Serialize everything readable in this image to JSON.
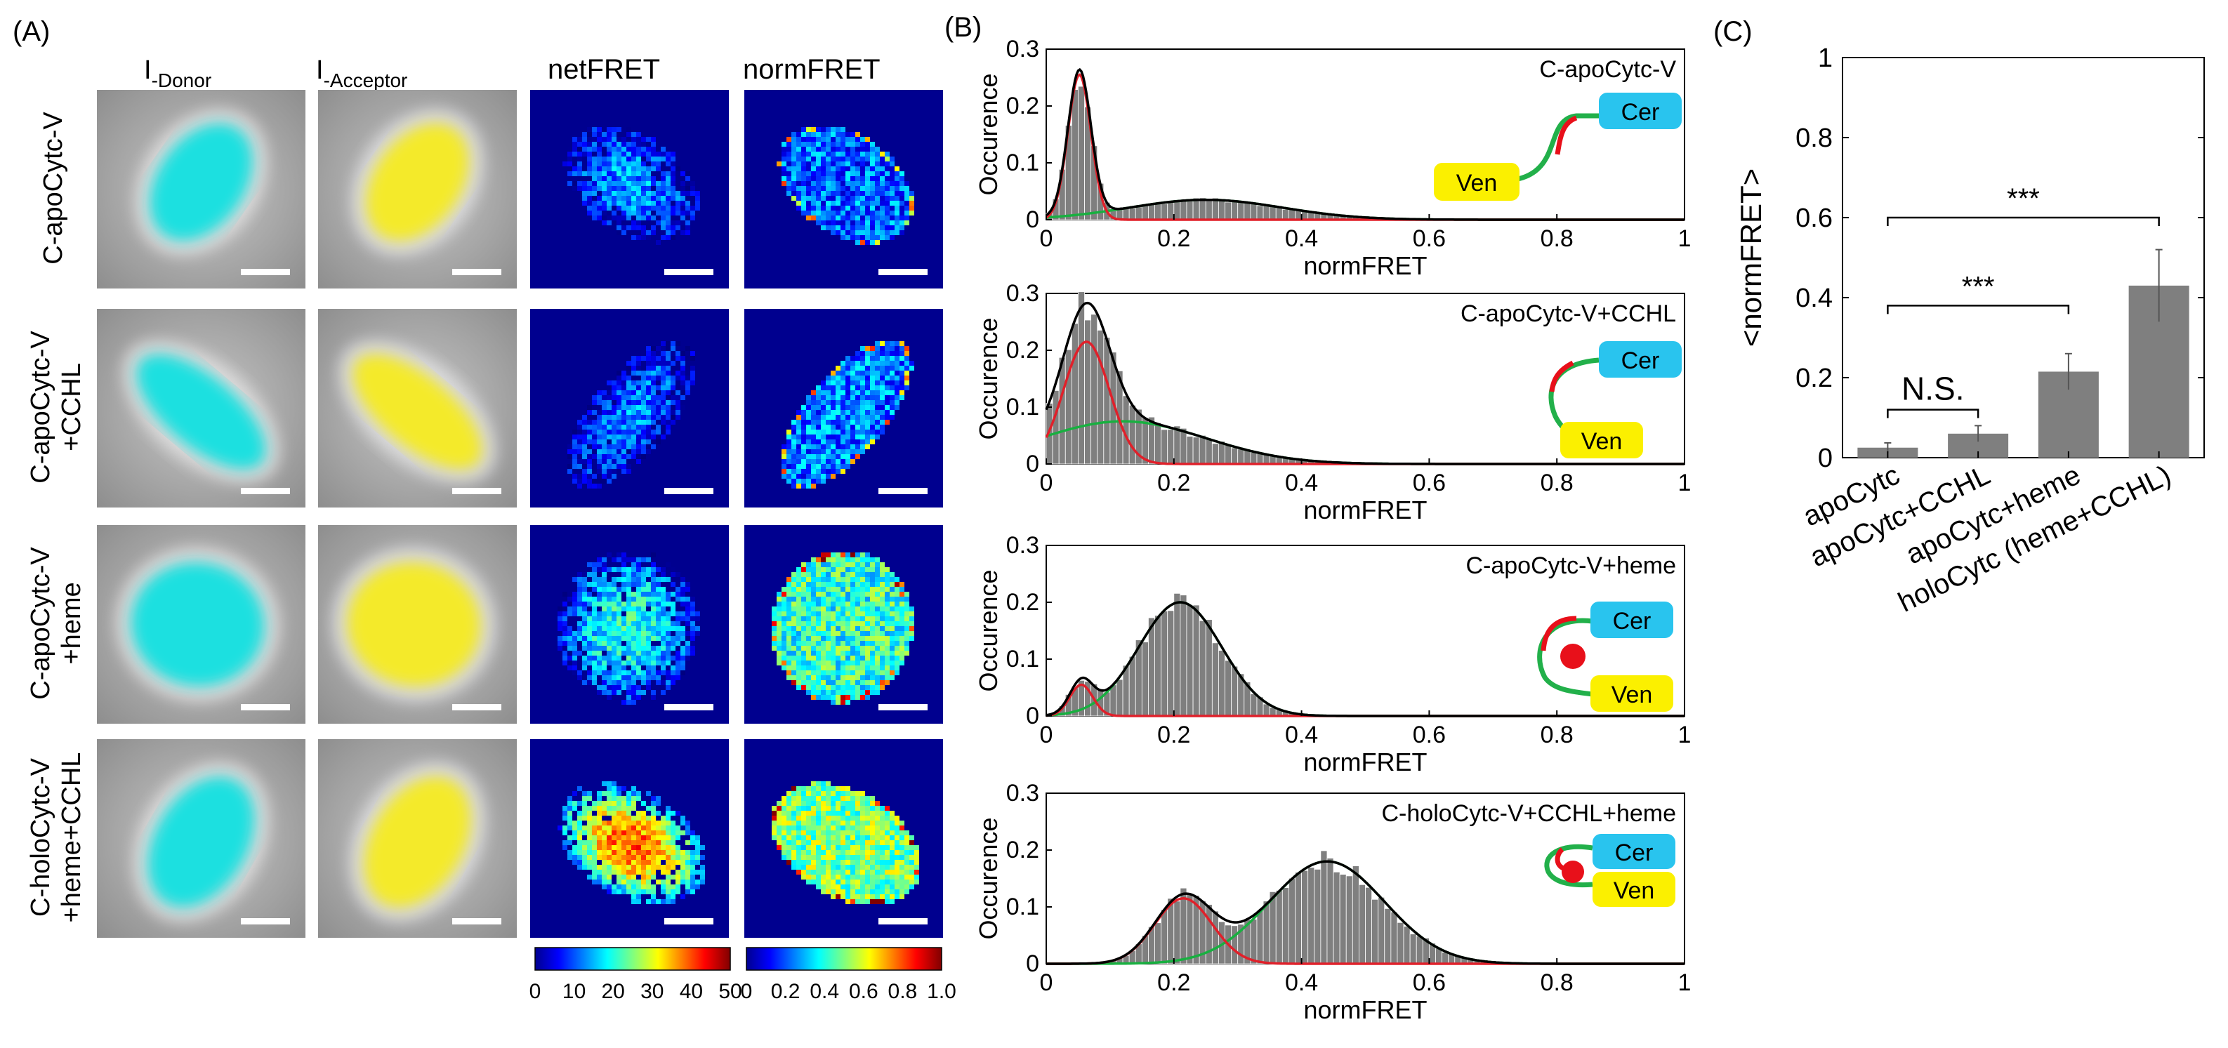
{
  "panels": {
    "a": "(A)",
    "b": "(B)",
    "c": "(C)"
  },
  "imaging": {
    "column_headers": [
      {
        "base": "I",
        "sub": "-Donor"
      },
      {
        "base": "I",
        "sub": "-Acceptor"
      },
      {
        "base": "netFRET",
        "sub": ""
      },
      {
        "base": "normFRET",
        "sub": ""
      }
    ],
    "rows": [
      {
        "lines": [
          "C-apoCytc-V"
        ]
      },
      {
        "lines": [
          "C-apoCytc-V",
          "+CCHL"
        ]
      },
      {
        "lines": [
          "C-apoCytc-V",
          "+heme"
        ]
      },
      {
        "lines": [
          "C-holoCytc-V",
          "+heme+CCHL"
        ]
      }
    ],
    "netfret_colorbar": {
      "ticks": [
        "0",
        "10",
        "20",
        "30",
        "40",
        "50"
      ],
      "min": 0,
      "max": 50
    },
    "normfret_colorbar": {
      "ticks": [
        "0",
        "0.2",
        "0.4",
        "0.6",
        "0.8",
        "1.0"
      ],
      "min": 0,
      "max": 1
    }
  },
  "colors": {
    "donor": "#1fe0e0",
    "acceptor": "#f4ea2a",
    "bar": "#7f7f7f",
    "fit_total": "#000000",
    "fit_peak1": "#e0202a",
    "fit_peak2": "#18b040",
    "cer": "#29c4ee",
    "ven": "#fbf000",
    "heme": "#e8101a",
    "map_background": "#00008f"
  },
  "chart_data": [
    {
      "type": "bar",
      "title": "C-apoCytc-V",
      "xlabel": "normFRET",
      "ylabel": "Occurence",
      "xlim": [
        0,
        1
      ],
      "ylim": [
        0,
        0.3
      ],
      "x_ticks": [
        "0",
        "0.2",
        "0.4",
        "0.6",
        "0.8",
        "1"
      ],
      "y_ticks": [
        "0",
        "0.1",
        "0.2",
        "0.3"
      ],
      "bin_width": 0.01,
      "fits": {
        "peak1": {
          "amplitude": 0.255,
          "center": 0.052,
          "sigma": 0.018
        },
        "peak2": {
          "amplitude": 0.035,
          "center": 0.25,
          "sigma": 0.12
        }
      },
      "schematic": "open"
    },
    {
      "type": "bar",
      "title": "C-apoCytc-V+CCHL",
      "xlabel": "normFRET",
      "ylabel": "Occurence",
      "xlim": [
        0,
        1
      ],
      "ylim": [
        0,
        0.3
      ],
      "x_ticks": [
        "0",
        "0.2",
        "0.4",
        "0.6",
        "0.8",
        "1"
      ],
      "y_ticks": [
        "0",
        "0.1",
        "0.2",
        "0.3"
      ],
      "bin_width": 0.01,
      "fits": {
        "peak1": {
          "amplitude": 0.215,
          "center": 0.063,
          "sigma": 0.036
        },
        "peak2": {
          "amplitude": 0.075,
          "center": 0.12,
          "sigma": 0.13
        }
      },
      "schematic": "open-down"
    },
    {
      "type": "bar",
      "title": "C-apoCytc-V+heme",
      "xlabel": "normFRET",
      "ylabel": "Occurence",
      "xlim": [
        0,
        1
      ],
      "ylim": [
        0,
        0.3
      ],
      "x_ticks": [
        "0",
        "0.2",
        "0.4",
        "0.6",
        "0.8",
        "1"
      ],
      "y_ticks": [
        "0",
        "0.1",
        "0.2",
        "0.3"
      ],
      "bin_width": 0.01,
      "fits": {
        "peak1": {
          "amplitude": 0.055,
          "center": 0.055,
          "sigma": 0.018
        },
        "peak2": {
          "amplitude": 0.2,
          "center": 0.21,
          "sigma": 0.065
        }
      },
      "schematic": "heme"
    },
    {
      "type": "bar",
      "title": "C-holoCytc-V+CCHL+heme",
      "xlabel": "normFRET",
      "ylabel": "Occurence",
      "xlim": [
        0,
        1
      ],
      "ylim": [
        0,
        0.3
      ],
      "x_ticks": [
        "0",
        "0.2",
        "0.4",
        "0.6",
        "0.8",
        "1"
      ],
      "y_ticks": [
        "0",
        "0.1",
        "0.2",
        "0.3"
      ],
      "bin_width": 0.01,
      "fits": {
        "peak1": {
          "amplitude": 0.115,
          "center": 0.215,
          "sigma": 0.045
        },
        "peak2": {
          "amplitude": 0.18,
          "center": 0.44,
          "sigma": 0.09
        }
      },
      "schematic": "holo"
    },
    {
      "type": "bar",
      "title": "",
      "xlabel": "",
      "ylabel": "<normFRET>",
      "ylim": [
        0,
        1
      ],
      "y_ticks": [
        "0",
        "0.2",
        "0.4",
        "0.6",
        "0.8",
        "1"
      ],
      "categories": [
        "apoCytc",
        "apoCytc+CCHL",
        "apoCytc+heme",
        "holoCytc (heme+CCHL)"
      ],
      "values": [
        0.025,
        0.06,
        0.215,
        0.43
      ],
      "errors": [
        0.012,
        0.02,
        0.045,
        0.09
      ],
      "significance": [
        {
          "from": 0,
          "to": 1,
          "label": "N.S.",
          "y": 0.12
        },
        {
          "from": 0,
          "to": 2,
          "label": "***",
          "y": 0.38
        },
        {
          "from": 0,
          "to": 3,
          "label": "***",
          "y": 0.6
        }
      ]
    }
  ],
  "schematic_labels": {
    "cer": "Cer",
    "ven": "Ven"
  }
}
